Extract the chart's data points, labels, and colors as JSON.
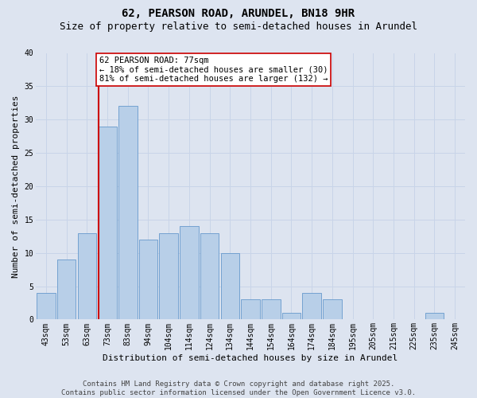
{
  "title1": "62, PEARSON ROAD, ARUNDEL, BN18 9HR",
  "title2": "Size of property relative to semi-detached houses in Arundel",
  "xlabel": "Distribution of semi-detached houses by size in Arundel",
  "ylabel": "Number of semi-detached properties",
  "bin_labels": [
    "43sqm",
    "53sqm",
    "63sqm",
    "73sqm",
    "83sqm",
    "94sqm",
    "104sqm",
    "114sqm",
    "124sqm",
    "134sqm",
    "144sqm",
    "154sqm",
    "164sqm",
    "174sqm",
    "184sqm",
    "195sqm",
    "205sqm",
    "215sqm",
    "225sqm",
    "235sqm",
    "245sqm"
  ],
  "bar_values": [
    4,
    9,
    13,
    29,
    32,
    12,
    13,
    14,
    13,
    10,
    3,
    3,
    1,
    4,
    3,
    0,
    0,
    0,
    0,
    1,
    0
  ],
  "bar_color": "#b8cfe8",
  "bar_edge_color": "#6699cc",
  "vline_color": "#cc0000",
  "annotation_text": "62 PEARSON ROAD: 77sqm\n← 18% of semi-detached houses are smaller (30)\n81% of semi-detached houses are larger (132) →",
  "annotation_box_color": "#ffffff",
  "annotation_box_edge_color": "#cc0000",
  "ylim": [
    0,
    40
  ],
  "yticks": [
    0,
    5,
    10,
    15,
    20,
    25,
    30,
    35,
    40
  ],
  "grid_color": "#c8d4e8",
  "bg_color": "#dde4f0",
  "footer_text": "Contains HM Land Registry data © Crown copyright and database right 2025.\nContains public sector information licensed under the Open Government Licence v3.0.",
  "title_fontsize": 10,
  "subtitle_fontsize": 9,
  "axis_label_fontsize": 8,
  "tick_fontsize": 7,
  "annotation_fontsize": 7.5,
  "footer_fontsize": 6.5,
  "property_bin_index": 3,
  "vline_x_offset": 0.5
}
